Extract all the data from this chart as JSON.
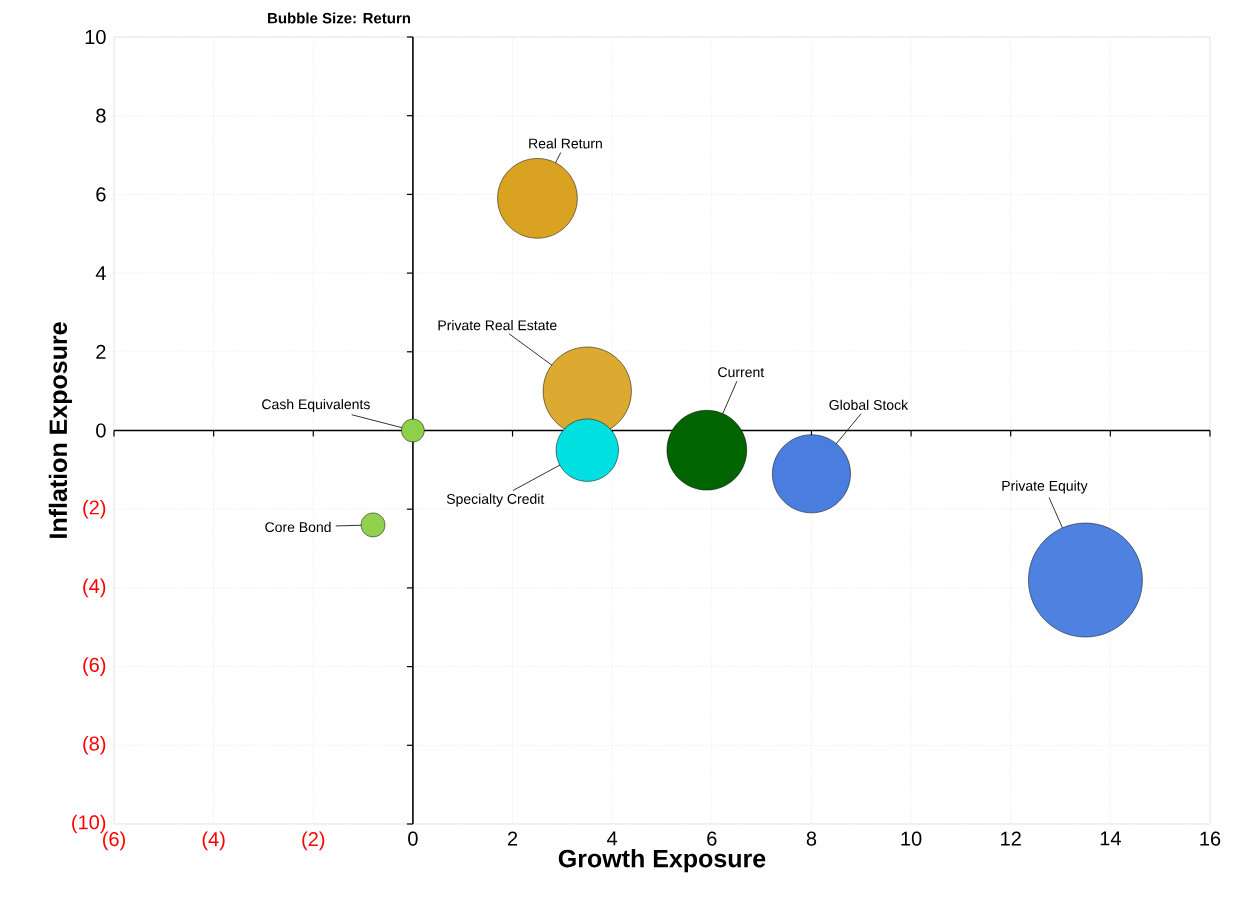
{
  "chart_data": {
    "type": "bubble",
    "title": "Bubble Size:  Return",
    "xlabel": "Growth Exposure",
    "ylabel": "Inflation Exposure",
    "xlim": [
      -6,
      16
    ],
    "ylim": [
      -10,
      10
    ],
    "xticks": [
      {
        "value": -6,
        "label": "(6)"
      },
      {
        "value": -4,
        "label": "(4)"
      },
      {
        "value": -2,
        "label": "(2)"
      },
      0,
      2,
      4,
      6,
      8,
      10,
      12,
      14,
      16
    ],
    "yticks": [
      {
        "value": -10,
        "label": "(10)"
      },
      {
        "value": -8,
        "label": "(8)"
      },
      {
        "value": -6,
        "label": "(6)"
      },
      {
        "value": -4,
        "label": "(4)"
      },
      {
        "value": -2,
        "label": "(2)"
      },
      0,
      2,
      4,
      6,
      8,
      10
    ],
    "grid": true,
    "series": [
      {
        "name": "Real Return",
        "color": "#d9a321",
        "x": [
          2.5
        ],
        "values": [
          5.9
        ],
        "sizes": [
          0.49
        ]
      },
      {
        "name": "Private Real Estate",
        "color": "#dcaa30",
        "x": [
          3.5
        ],
        "values": [
          1.0
        ],
        "sizes": [
          0.6
        ]
      },
      {
        "name": "Cash Equivalents",
        "color": "#8fd04a",
        "x": [
          0.0
        ],
        "values": [
          0.0
        ],
        "sizes": [
          0.04
        ]
      },
      {
        "name": "Specialty Credit",
        "color": "#00e0e0",
        "x": [
          3.5
        ],
        "values": [
          -0.5
        ],
        "sizes": [
          0.3
        ]
      },
      {
        "name": "Current",
        "color": "#006400",
        "x": [
          5.9
        ],
        "values": [
          -0.5
        ],
        "sizes": [
          0.49
        ]
      },
      {
        "name": "Global Stock",
        "color": "#4a7ede",
        "x": [
          8.0
        ],
        "values": [
          -1.1
        ],
        "sizes": [
          0.47
        ]
      },
      {
        "name": "Core Bond",
        "color": "#92d050",
        "x": [
          -0.8
        ],
        "values": [
          -2.4
        ],
        "sizes": [
          0.044
        ]
      },
      {
        "name": "Private Equity",
        "color": "#4f82e0",
        "x": [
          13.5
        ],
        "values": [
          -3.8
        ],
        "sizes": [
          1.0
        ]
      }
    ]
  }
}
